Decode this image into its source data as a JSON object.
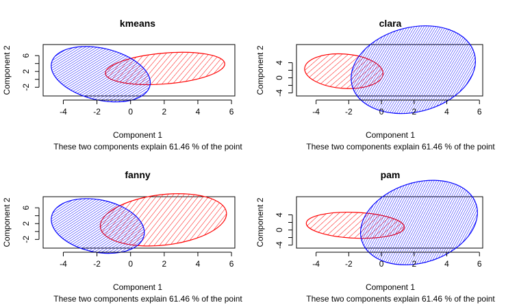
{
  "chart_data": [
    {
      "type": "scatter",
      "title": "kmeans",
      "xlabel": "Component 1",
      "ylabel": "Component 2",
      "caption": "These two components explain 61.46 % of the point",
      "xlim": [
        -5.2,
        6.2
      ],
      "ylim": [
        -4.2,
        8.8
      ],
      "xticks": [
        -4,
        -2,
        0,
        2,
        4,
        6
      ],
      "yticks": [
        -2,
        2,
        6
      ],
      "clusters": [
        {
          "color": "#ff0000",
          "hatch": "diagonal-45",
          "center": [
            2.75,
            4.0
          ],
          "points": [
            [
              -1.5,
              1.5
            ],
            [
              5.6,
              4.0
            ],
            [
              2.75,
              7.7
            ],
            [
              2.75,
              -0.1
            ],
            [
              -1.4,
              3.8
            ],
            [
              0.8,
              6.6
            ]
          ]
        },
        {
          "color": "#0000ff",
          "hatch": "diagonal-45",
          "center": [
            -1.95,
            1.2
          ],
          "points": [
            [
              -4.7,
              4.2
            ],
            [
              1.15,
              -1.6
            ],
            [
              -3.5,
              3.2
            ],
            [
              -0.5,
              0.3
            ],
            [
              -2.5,
              2.0
            ],
            [
              0.5,
              -0.8
            ]
          ]
        }
      ]
    },
    {
      "type": "scatter",
      "title": "clara",
      "xlabel": "Component 1",
      "ylabel": "Component 2",
      "caption": "These two components explain 61.46 % of the point",
      "xlim": [
        -5.2,
        6.2
      ],
      "ylim": [
        -4.8,
        8.8
      ],
      "xticks": [
        -4,
        -2,
        0,
        2,
        4,
        6
      ],
      "yticks": [
        -4,
        0,
        4
      ],
      "clusters": [
        {
          "color": "#ff0000",
          "hatch": "diagonal-45",
          "center": [
            -2.1,
            2.3
          ],
          "points": [
            [
              -4.7,
              2.5
            ],
            [
              0.1,
              1.0
            ],
            [
              -2.6,
              6.4
            ],
            [
              -1.8,
              -2.0
            ],
            [
              -3.8,
              4.4
            ],
            [
              -0.6,
              -1.1
            ]
          ]
        },
        {
          "color": "#0000ff",
          "hatch": "diagonal-45",
          "center": [
            2.05,
            2.3
          ],
          "points": [
            [
              -1.8,
              -2.0
            ],
            [
              5.7,
              6.3
            ],
            [
              -0.5,
              -1.0
            ],
            [
              4.5,
              4.7
            ],
            [
              1.0,
              0.9
            ],
            [
              3.4,
              3.4
            ]
          ]
        }
      ]
    },
    {
      "type": "scatter",
      "title": "fanny",
      "xlabel": "Component 1",
      "ylabel": "Component 2",
      "caption": "These two components explain 61.46 % of the point",
      "xlim": [
        -5.2,
        6.2
      ],
      "ylim": [
        -4.2,
        8.8
      ],
      "xticks": [
        -4,
        -2,
        0,
        2,
        4,
        6
      ],
      "yticks": [
        -2,
        2,
        6
      ],
      "clusters": [
        {
          "color": "#ff0000",
          "hatch": "diagonal-45",
          "center": [
            2.1,
            3.8
          ],
          "points": [
            [
              -1.8,
              1.1
            ],
            [
              5.7,
              4.8
            ],
            [
              2.95,
              7.9
            ],
            [
              0.75,
              -0.8
            ],
            [
              -1.6,
              3.3
            ],
            [
              1.0,
              6.6
            ]
          ]
        },
        {
          "color": "#0000ff",
          "hatch": "diagonal-45",
          "center": [
            -1.9,
            1.3
          ],
          "points": [
            [
              -4.7,
              3.8
            ],
            [
              0.8,
              -1.0
            ],
            [
              -3.4,
              3.3
            ],
            [
              -0.4,
              -0.2
            ],
            [
              -2.9,
              2.5
            ],
            [
              -0.7,
              0.4
            ]
          ]
        }
      ]
    },
    {
      "type": "scatter",
      "title": "pam",
      "xlabel": "Component 1",
      "ylabel": "Component 2",
      "caption": "These two components explain 61.46 % of the point",
      "xlim": [
        -5.2,
        6.2
      ],
      "ylim": [
        -4.8,
        8.8
      ],
      "xticks": [
        -4,
        -2,
        0,
        2,
        4,
        6
      ],
      "yticks": [
        -4,
        0,
        4
      ],
      "clusters": [
        {
          "color": "#ff0000",
          "hatch": "diagonal-45",
          "center": [
            -1.2,
            1.8
          ],
          "points": [
            [
              -4.6,
              1.8
            ],
            [
              1.4,
              0.7
            ],
            [
              -1.8,
              5.1
            ],
            [
              -1.4,
              -1.5
            ],
            [
              -3.6,
              3.8
            ],
            [
              -0.1,
              -1.0
            ]
          ]
        },
        {
          "color": "#0000ff",
          "hatch": "diagonal-45",
          "center": [
            2.3,
            1.9
          ],
          "points": [
            [
              -1.2,
              -2.9
            ],
            [
              5.8,
              6.8
            ],
            [
              0.0,
              -2.0
            ],
            [
              4.6,
              5.2
            ],
            [
              1.5,
              0.6
            ],
            [
              3.5,
              3.9
            ]
          ]
        }
      ]
    }
  ]
}
